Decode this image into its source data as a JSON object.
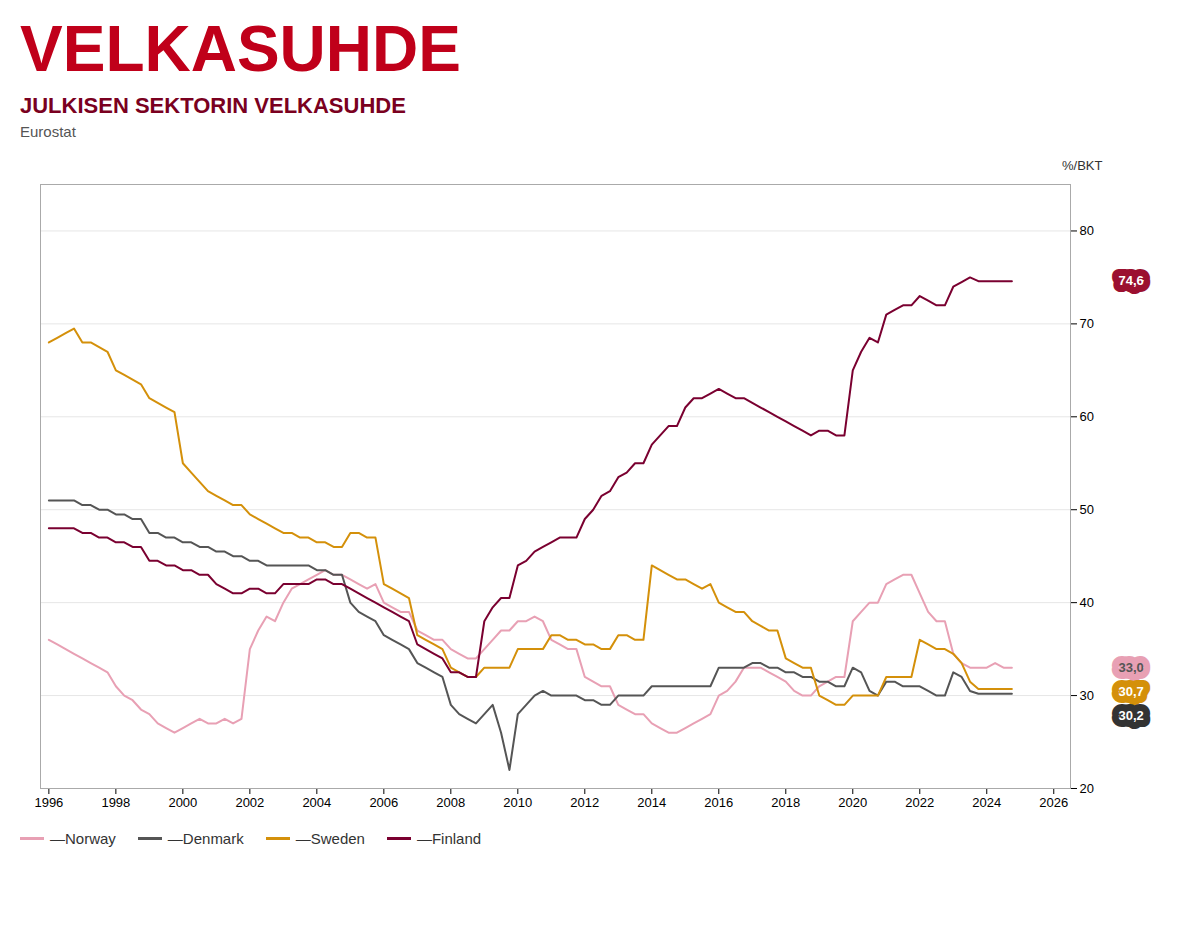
{
  "chart_data": {
    "type": "line",
    "title": "VELKASUHDE",
    "subtitle": "JULKISEN SEKTORIN VELKASUHDE",
    "source": "Eurostat",
    "ylabel": "%/BKT",
    "x": [
      1996,
      1996.25,
      1996.5,
      1996.75,
      1997,
      1997.25,
      1997.5,
      1997.75,
      1998,
      1998.25,
      1998.5,
      1998.75,
      1999,
      1999.25,
      1999.5,
      1999.75,
      2000,
      2000.25,
      2000.5,
      2000.75,
      2001,
      2001.25,
      2001.5,
      2001.75,
      2002,
      2002.25,
      2002.5,
      2002.75,
      2003,
      2003.25,
      2003.5,
      2003.75,
      2004,
      2004.25,
      2004.5,
      2004.75,
      2005,
      2005.25,
      2005.5,
      2005.75,
      2006,
      2006.25,
      2006.5,
      2006.75,
      2007,
      2007.25,
      2007.5,
      2007.75,
      2008,
      2008.25,
      2008.5,
      2008.75,
      2009,
      2009.25,
      2009.5,
      2009.75,
      2010,
      2010.25,
      2010.5,
      2010.75,
      2011,
      2011.25,
      2011.5,
      2011.75,
      2012,
      2012.25,
      2012.5,
      2012.75,
      2013,
      2013.25,
      2013.5,
      2013.75,
      2014,
      2014.25,
      2014.5,
      2014.75,
      2015,
      2015.25,
      2015.5,
      2015.75,
      2016,
      2016.25,
      2016.5,
      2016.75,
      2017,
      2017.25,
      2017.5,
      2017.75,
      2018,
      2018.25,
      2018.5,
      2018.75,
      2019,
      2019.25,
      2019.5,
      2019.75,
      2020,
      2020.25,
      2020.5,
      2020.75,
      2021,
      2021.25,
      2021.5,
      2021.75,
      2022,
      2022.25,
      2022.5,
      2022.75,
      2023,
      2023.25,
      2023.5,
      2023.75,
      2024,
      2024.25,
      2024.5,
      2024.75
    ],
    "series": [
      {
        "name": "—Norway",
        "color": "#e8a0b4",
        "values": [
          36.0,
          35.5,
          35.0,
          34.5,
          34.0,
          33.5,
          33.0,
          32.5,
          31.0,
          30.0,
          29.5,
          28.5,
          28.0,
          27.0,
          26.5,
          26.0,
          26.5,
          27.0,
          27.5,
          27.0,
          27.0,
          27.5,
          27.0,
          27.5,
          35.0,
          37.0,
          38.5,
          38.0,
          40.0,
          41.5,
          42.0,
          42.5,
          43.0,
          43.5,
          43.0,
          43.0,
          42.5,
          42.0,
          41.5,
          42.0,
          40.0,
          39.5,
          39.0,
          39.0,
          37.0,
          36.5,
          36.0,
          36.0,
          35.0,
          34.5,
          34.0,
          34.0,
          35.0,
          36.0,
          37.0,
          37.0,
          38.0,
          38.0,
          38.5,
          38.0,
          36.0,
          35.5,
          35.0,
          35.0,
          32.0,
          31.5,
          31.0,
          31.0,
          29.0,
          28.5,
          28.0,
          28.0,
          27.0,
          26.5,
          26.0,
          26.0,
          26.5,
          27.0,
          27.5,
          28.0,
          30.0,
          30.5,
          31.5,
          33.0,
          33.0,
          33.0,
          32.5,
          32.0,
          31.5,
          30.5,
          30.0,
          30.0,
          31.0,
          31.5,
          32.0,
          32.0,
          38.0,
          39.0,
          40.0,
          40.0,
          42.0,
          42.5,
          43.0,
          43.0,
          41.0,
          39.0,
          38.0,
          38.0,
          34.5,
          33.5,
          33.0,
          33.0,
          33.0,
          33.5,
          33.0,
          33.0
        ]
      },
      {
        "name": "—Denmark",
        "color": "#555555",
        "values": [
          51.0,
          51.0,
          51.0,
          51.0,
          50.5,
          50.5,
          50.0,
          50.0,
          49.5,
          49.5,
          49.0,
          49.0,
          47.5,
          47.5,
          47.0,
          47.0,
          46.5,
          46.5,
          46.0,
          46.0,
          45.5,
          45.5,
          45.0,
          45.0,
          44.5,
          44.5,
          44.0,
          44.0,
          44.0,
          44.0,
          44.0,
          44.0,
          43.5,
          43.5,
          43.0,
          43.0,
          40.0,
          39.0,
          38.5,
          38.0,
          36.5,
          36.0,
          35.5,
          35.0,
          33.5,
          33.0,
          32.5,
          32.0,
          29.0,
          28.0,
          27.5,
          27.0,
          28.0,
          29.0,
          26.0,
          22.0,
          28.0,
          29.0,
          30.0,
          30.5,
          30.0,
          30.0,
          30.0,
          30.0,
          29.5,
          29.5,
          29.0,
          29.0,
          30.0,
          30.0,
          30.0,
          30.0,
          31.0,
          31.0,
          31.0,
          31.0,
          31.0,
          31.0,
          31.0,
          31.0,
          33.0,
          33.0,
          33.0,
          33.0,
          33.5,
          33.5,
          33.0,
          33.0,
          32.5,
          32.5,
          32.0,
          32.0,
          31.5,
          31.5,
          31.0,
          31.0,
          33.0,
          32.5,
          30.5,
          30.0,
          31.5,
          31.5,
          31.0,
          31.0,
          31.0,
          30.5,
          30.0,
          30.0,
          32.5,
          32.0,
          30.5,
          30.2,
          30.2,
          30.2,
          30.2,
          30.2
        ]
      },
      {
        "name": "—Sweden",
        "color": "#d4900a",
        "values": [
          68.0,
          68.5,
          69.0,
          69.5,
          68.0,
          68.0,
          67.5,
          67.0,
          65.0,
          64.5,
          64.0,
          63.5,
          62.0,
          61.5,
          61.0,
          60.5,
          55.0,
          54.0,
          53.0,
          52.0,
          51.5,
          51.0,
          50.5,
          50.5,
          49.5,
          49.0,
          48.5,
          48.0,
          47.5,
          47.5,
          47.0,
          47.0,
          46.5,
          46.5,
          46.0,
          46.0,
          47.5,
          47.5,
          47.0,
          47.0,
          42.0,
          41.5,
          41.0,
          40.5,
          36.5,
          36.0,
          35.5,
          35.0,
          33.0,
          32.5,
          32.0,
          32.0,
          33.0,
          33.0,
          33.0,
          33.0,
          35.0,
          35.0,
          35.0,
          35.0,
          36.5,
          36.5,
          36.0,
          36.0,
          35.5,
          35.5,
          35.0,
          35.0,
          36.5,
          36.5,
          36.0,
          36.0,
          44.0,
          43.5,
          43.0,
          42.5,
          42.5,
          42.0,
          41.5,
          42.0,
          40.0,
          39.5,
          39.0,
          39.0,
          38.0,
          37.5,
          37.0,
          37.0,
          34.0,
          33.5,
          33.0,
          33.0,
          30.0,
          29.5,
          29.0,
          29.0,
          30.0,
          30.0,
          30.0,
          30.0,
          32.0,
          32.0,
          32.0,
          32.0,
          36.0,
          35.5,
          35.0,
          35.0,
          34.5,
          33.5,
          31.5,
          30.7,
          30.7,
          30.7,
          30.7,
          30.7
        ]
      },
      {
        "name": "—Finland",
        "color": "#7a0030",
        "values": [
          48.0,
          48.0,
          48.0,
          48.0,
          47.5,
          47.5,
          47.0,
          47.0,
          46.5,
          46.5,
          46.0,
          46.0,
          44.5,
          44.5,
          44.0,
          44.0,
          43.5,
          43.5,
          43.0,
          43.0,
          42.0,
          41.5,
          41.0,
          41.0,
          41.5,
          41.5,
          41.0,
          41.0,
          42.0,
          42.0,
          42.0,
          42.0,
          42.5,
          42.5,
          42.0,
          42.0,
          41.5,
          41.0,
          40.5,
          40.0,
          39.5,
          39.0,
          38.5,
          38.0,
          35.5,
          35.0,
          34.5,
          34.0,
          32.5,
          32.5,
          32.0,
          32.0,
          38.0,
          39.5,
          40.5,
          40.5,
          44.0,
          44.5,
          45.5,
          46.0,
          46.5,
          47.0,
          47.0,
          47.0,
          49.0,
          50.0,
          51.5,
          52.0,
          53.5,
          54.0,
          55.0,
          55.0,
          57.0,
          58.0,
          59.0,
          59.0,
          61.0,
          62.0,
          62.0,
          62.5,
          63.0,
          62.5,
          62.0,
          62.0,
          61.5,
          61.0,
          60.5,
          60.0,
          59.5,
          59.0,
          58.5,
          58.0,
          58.5,
          58.5,
          58.0,
          58.0,
          65.0,
          67.0,
          68.5,
          68.0,
          71.0,
          71.5,
          72.0,
          72.0,
          73.0,
          72.5,
          72.0,
          72.0,
          74.0,
          74.5,
          75.0,
          74.6,
          74.6,
          74.6,
          74.6,
          74.6
        ]
      }
    ],
    "xlim": [
      1995.75,
      2026.5
    ],
    "xticks": [
      1996,
      1998,
      2000,
      2002,
      2004,
      2006,
      2008,
      2010,
      2012,
      2014,
      2016,
      2018,
      2020,
      2022,
      2024,
      2026
    ],
    "ylim": [
      20,
      85
    ],
    "yticks": [
      20,
      30,
      40,
      50,
      60,
      70,
      80
    ],
    "grid": true,
    "title_color": "#c0001a",
    "subtitle_color": "#7a0020",
    "annotations": [
      {
        "label": "74,6",
        "value": 74.6,
        "color": "#9b1030"
      },
      {
        "label": "33,0",
        "value": 33.0,
        "color": "#e8a0b4"
      },
      {
        "label": "30,7",
        "value": 30.7,
        "color": "#d4900a"
      },
      {
        "label": "30,2",
        "value": 30.2,
        "color": "#333333"
      }
    ]
  }
}
